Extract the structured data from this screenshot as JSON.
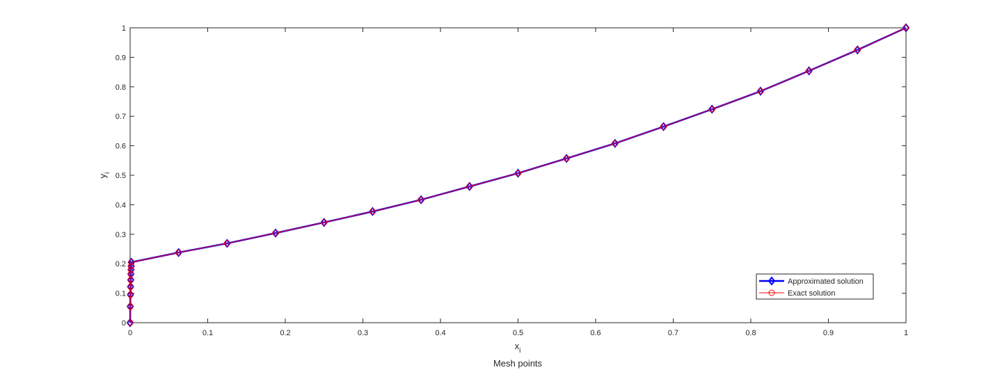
{
  "chart_data": {
    "type": "line",
    "xlabel": "x",
    "xlabel_subscript": "i",
    "xlabel_line2": "Mesh points",
    "ylabel": "y",
    "ylabel_subscript": "i",
    "x": [
      0,
      0.0002,
      0.0004,
      0.0006,
      0.0008,
      0.001,
      0.0012,
      0.0014,
      0.0016,
      0.0625,
      0.125,
      0.1875,
      0.25,
      0.3125,
      0.375,
      0.4375,
      0.5,
      0.5625,
      0.625,
      0.6875,
      0.75,
      0.8125,
      0.875,
      0.9375,
      1
    ],
    "series": [
      {
        "name": "Approximated solution",
        "color": "#0000ff",
        "marker": "diamond",
        "line_width": 2.5,
        "values": [
          0,
          0.055,
          0.095,
          0.122,
          0.145,
          0.165,
          0.18,
          0.192,
          0.205,
          0.238,
          0.269,
          0.304,
          0.34,
          0.377,
          0.417,
          0.462,
          0.507,
          0.557,
          0.608,
          0.665,
          0.724,
          0.785,
          0.854,
          0.925,
          1
        ]
      },
      {
        "name": "Exact solution",
        "color": "#ff0000",
        "marker": "circle",
        "line_width": 1,
        "values": [
          0,
          0.055,
          0.095,
          0.122,
          0.145,
          0.165,
          0.18,
          0.192,
          0.205,
          0.238,
          0.269,
          0.304,
          0.34,
          0.377,
          0.417,
          0.462,
          0.507,
          0.557,
          0.608,
          0.665,
          0.724,
          0.785,
          0.854,
          0.925,
          1
        ]
      }
    ],
    "xlim": [
      0,
      1
    ],
    "ylim": [
      0,
      1
    ],
    "xticks": [
      0,
      0.1,
      0.2,
      0.3,
      0.4,
      0.5,
      0.6,
      0.7,
      0.8,
      0.9,
      1
    ],
    "yticks": [
      0,
      0.1,
      0.2,
      0.3,
      0.4,
      0.5,
      0.6,
      0.7,
      0.8,
      0.9,
      1
    ],
    "legend": "lower right"
  }
}
